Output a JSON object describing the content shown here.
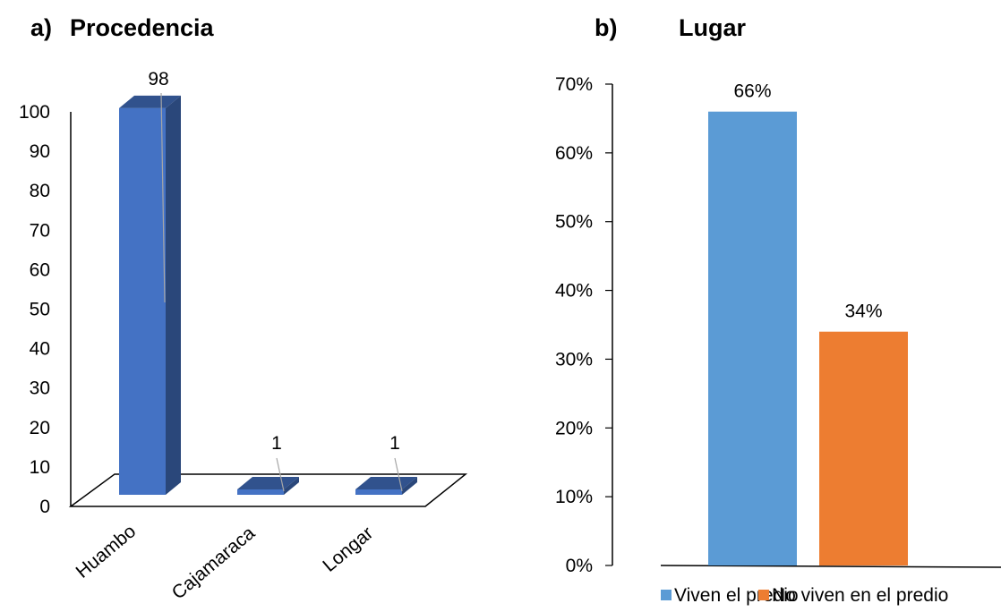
{
  "chart_data": [
    {
      "type": "bar",
      "panel": "a)",
      "title": "Procedencia",
      "categories": [
        "Huambo",
        "Cajamaraca",
        "Longar"
      ],
      "values": [
        98,
        1,
        1
      ],
      "data_labels": [
        "98",
        "1",
        "1"
      ],
      "ylim": [
        0,
        100
      ],
      "yticks": [
        "0",
        "10",
        "20",
        "30",
        "40",
        "50",
        "60",
        "70",
        "80",
        "90",
        "100"
      ],
      "style": "3d-column",
      "color": "#4472C4"
    },
    {
      "type": "bar",
      "panel": "b)",
      "title": "Lugar",
      "categories": [
        "Viven el predio",
        "No viven en el predio"
      ],
      "values": [
        66,
        34
      ],
      "data_labels": [
        "66%",
        "34%"
      ],
      "ylim": [
        0,
        70
      ],
      "yticks": [
        "0%",
        "10%",
        "20%",
        "30%",
        "40%",
        "50%",
        "60%",
        "70%"
      ],
      "colors": [
        "#5B9BD5",
        "#ED7D31"
      ],
      "legend": [
        "Viven el predio",
        "No viven en el predio"
      ],
      "legend_position": "bottom"
    }
  ]
}
